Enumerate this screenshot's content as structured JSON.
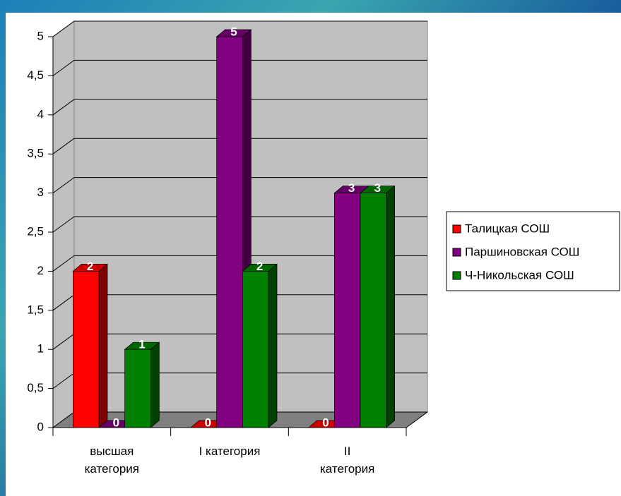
{
  "chart_data": {
    "type": "bar3d",
    "categories": [
      "высшая категория",
      "I категория",
      "II категория"
    ],
    "series": [
      {
        "name": "Талицкая СОШ",
        "color": "#ff0000",
        "values": [
          2,
          0,
          0
        ]
      },
      {
        "name": "Паршиновская СОШ",
        "color": "#800080",
        "values": [
          0,
          5,
          3
        ]
      },
      {
        "name": "Ч-Никольская СОШ",
        "color": "#008000",
        "values": [
          1,
          2,
          3
        ]
      }
    ],
    "ylim": [
      0,
      5
    ],
    "yticks": [
      0,
      {
        "value": 0.5,
        "label": "0,5"
      },
      1,
      {
        "value": 1.5,
        "label": "1,5"
      },
      2,
      {
        "value": 2.5,
        "label": "2,5"
      },
      3,
      {
        "value": 3.5,
        "label": "3,5"
      },
      4,
      {
        "value": 4.5,
        "label": "4,5"
      },
      5
    ],
    "grid": true,
    "legend": "right"
  }
}
